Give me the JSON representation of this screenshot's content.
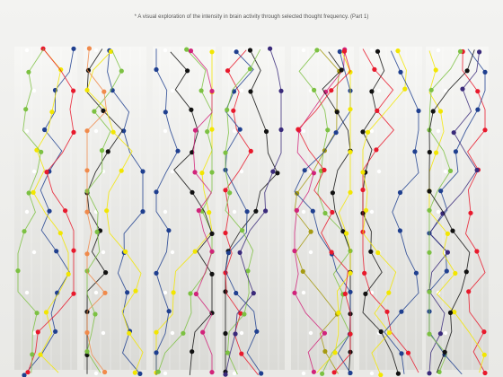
{
  "caption": "* A visual exploration of the intensity in brain activity through selected thought frequency. (Part 1)",
  "colors": {
    "background": "#ececea",
    "panel_light": "#f7f7f5",
    "panel_dark": "#dadad6",
    "red": "#e8192c",
    "yellow": "#f2e600",
    "blue": "#1f3f8f",
    "purple": "#3a2a7a",
    "green": "#7cc142",
    "olive": "#a59a12",
    "black": "#111111",
    "orange": "#f08a4b",
    "magenta": "#d1237a",
    "white": "#ffffff"
  },
  "panel_count": 7,
  "row_count": 17
}
